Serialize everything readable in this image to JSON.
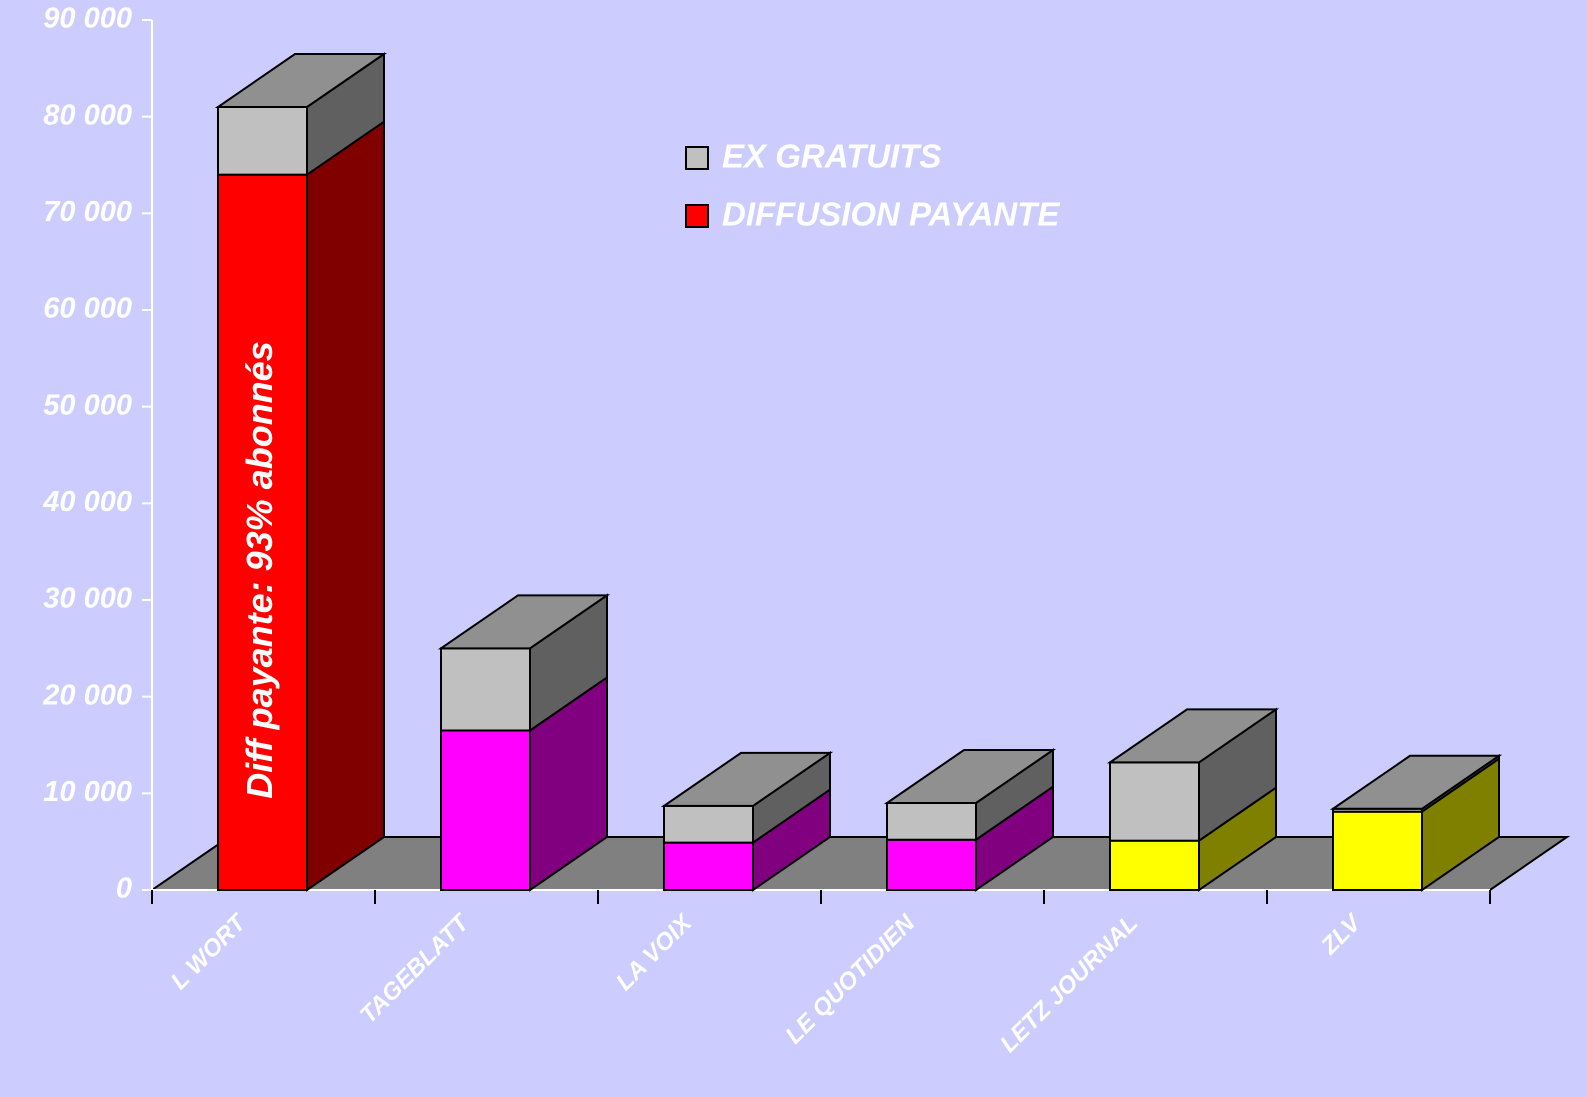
{
  "chart_data": {
    "type": "bar3d_stacked",
    "categories": [
      "L WORT",
      "TAGEBLATT",
      "LA VOIX",
      "LE QUOTIDIEN",
      "LETZ JOURNAL",
      "ZLV"
    ],
    "series": [
      {
        "name": "DIFFUSION PAYANTE",
        "color": "#ff0000",
        "colors": [
          "#ff0000",
          "#ff00ff",
          "#ff00ff",
          "#ff00ff",
          "#ffff00",
          "#ffff00"
        ],
        "values": [
          74000,
          16500,
          4900,
          5200,
          5100,
          8100
        ]
      },
      {
        "name": "EX GRATUITS",
        "color": "#c0c0c0",
        "values": [
          7000,
          8500,
          3800,
          3800,
          8100,
          300
        ]
      }
    ],
    "ylim": [
      0,
      90000
    ],
    "yticks": [
      0,
      {
        "value": 10000,
        "label": "10 000"
      },
      {
        "value": 20000,
        "label": "20 000"
      },
      {
        "value": 30000,
        "label": "30 000"
      },
      {
        "value": 40000,
        "label": "40 000"
      },
      {
        "value": 50000,
        "label": "50 000"
      },
      {
        "value": 60000,
        "label": "60 000"
      },
      {
        "value": 70000,
        "label": "70 000"
      },
      {
        "value": 80000,
        "label": "80 000"
      },
      {
        "value": 90000,
        "label": "90 000"
      }
    ],
    "annotation": "Diff payante: 93% abonnés",
    "background": "#ccccff",
    "floor_color": "#808080"
  }
}
